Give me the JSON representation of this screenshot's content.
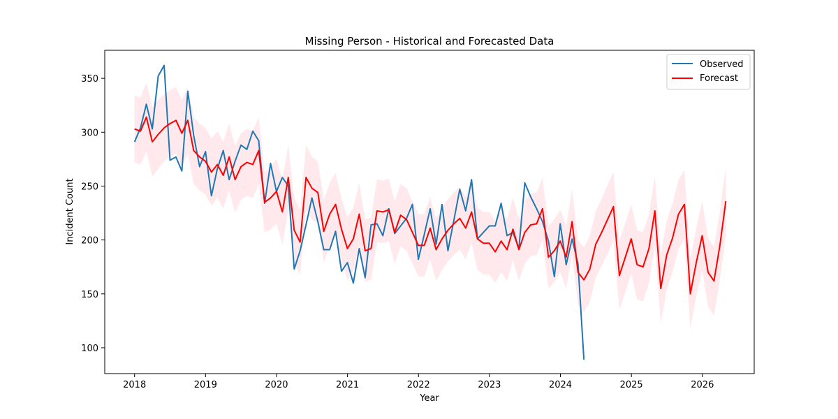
{
  "chart_data": {
    "type": "line",
    "title": "Missing Person - Historical and Forecasted Data",
    "xlabel": "Year",
    "ylabel": "Incident Count",
    "xlim": [
      2017.58,
      2026.73
    ],
    "ylim": [
      76,
      376
    ],
    "x_ticks": [
      2018,
      2019,
      2020,
      2021,
      2022,
      2023,
      2024,
      2025,
      2026
    ],
    "y_ticks": [
      100,
      150,
      200,
      250,
      300,
      350
    ],
    "grid": false,
    "legend_position": "top-right",
    "colors": {
      "observed": "#1f77b4",
      "forecast": "#ff0000",
      "interval": "#ffc0cb"
    },
    "series": [
      {
        "name": "Observed",
        "x_start": 2018.0,
        "x_step": 0.0833,
        "values": [
          291,
          304,
          326,
          303,
          352,
          362,
          274,
          277,
          264,
          338,
          297,
          268,
          282,
          241,
          266,
          283,
          256,
          273,
          288,
          284,
          301,
          292,
          234,
          271,
          245,
          258,
          250,
          173,
          190,
          214,
          239,
          217,
          191,
          191,
          208,
          171,
          179,
          160,
          192,
          165,
          214,
          215,
          204,
          229,
          206,
          213,
          220,
          233,
          182,
          205,
          229,
          196,
          233,
          190,
          218,
          247,
          227,
          256,
          201,
          207,
          213,
          213,
          234,
          204,
          207,
          192,
          253,
          240,
          229,
          217,
          199,
          166,
          215,
          177,
          201,
          178,
          89
        ]
      },
      {
        "name": "Forecast",
        "x_start": 2018.0,
        "x_step": 0.0833,
        "values": [
          303,
          301,
          314,
          291,
          298,
          304,
          308,
          311,
          299,
          311,
          283,
          277,
          273,
          263,
          270,
          260,
          277,
          256,
          268,
          272,
          270,
          283,
          235,
          239,
          245,
          226,
          258,
          209,
          198,
          258,
          248,
          244,
          208,
          224,
          233,
          210,
          192,
          201,
          224,
          190,
          192,
          227,
          226,
          228,
          207,
          223,
          219,
          207,
          195,
          195,
          211,
          191,
          201,
          209,
          215,
          220,
          211,
          226,
          201,
          197,
          197,
          189,
          199,
          191,
          210,
          191,
          207,
          214,
          215,
          229,
          184,
          190,
          199,
          184,
          217,
          170,
          163,
          173,
          196,
          207,
          219,
          231,
          167,
          184,
          201,
          177,
          175,
          192,
          227,
          155,
          186,
          202,
          224,
          233,
          150,
          179,
          204,
          170,
          162,
          195,
          236
        ]
      }
    ],
    "interval": {
      "name": "",
      "x_start": 2018.0,
      "x_step": 0.0833,
      "half_width": [
        31,
        31,
        32,
        32,
        32,
        31,
        31,
        31,
        31,
        31,
        31,
        31,
        31,
        31,
        31,
        31,
        31,
        31,
        31,
        31,
        31,
        31,
        28,
        29,
        30,
        30,
        30,
        30,
        30,
        30,
        29,
        29,
        29,
        29,
        29,
        29,
        29,
        29,
        29,
        29,
        29,
        29,
        29,
        29,
        29,
        29,
        29,
        29,
        29,
        29,
        29,
        29,
        29,
        29,
        29,
        29,
        29,
        29,
        29,
        29,
        29,
        29,
        29,
        29,
        29,
        29,
        29,
        29,
        29,
        29,
        29,
        29,
        29,
        29,
        30,
        30,
        30,
        31,
        31,
        31,
        32,
        32,
        32,
        32,
        32,
        32,
        32,
        32,
        32,
        32,
        32,
        32,
        32,
        32,
        32,
        32,
        32,
        32,
        32,
        32,
        32
      ]
    }
  }
}
